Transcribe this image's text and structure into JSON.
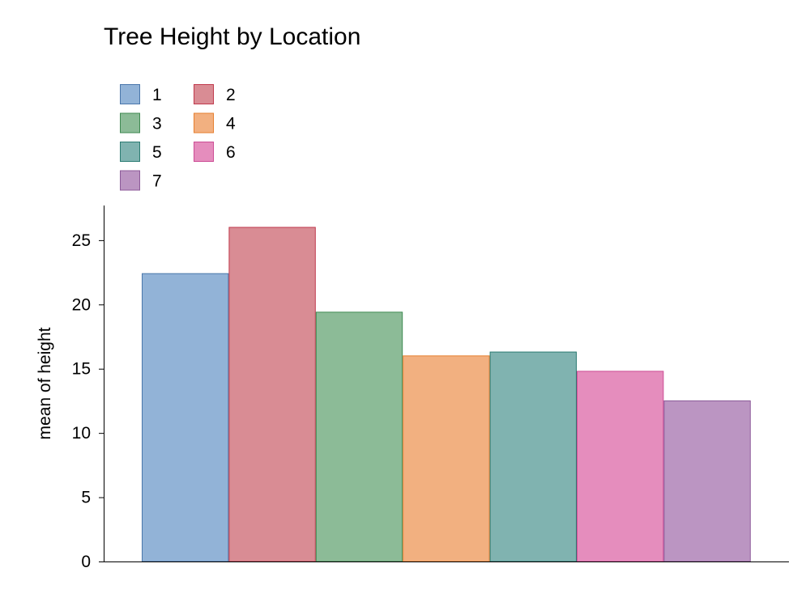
{
  "chart_data": {
    "type": "bar",
    "title": "Tree Height by Location",
    "xlabel": "",
    "ylabel": "mean of height",
    "ylim": [
      0,
      27.7
    ],
    "yticks": [
      0,
      5,
      10,
      15,
      20,
      25
    ],
    "grid": false,
    "legend_position": "top-left",
    "series": [
      {
        "name": "1",
        "value": 22.4,
        "fill": "#92b3d7",
        "stroke": "#4a77ab"
      },
      {
        "name": "2",
        "value": 26.0,
        "fill": "#d98c94",
        "stroke": "#c0394c"
      },
      {
        "name": "3",
        "value": 19.4,
        "fill": "#8cbb97",
        "stroke": "#3f8a52"
      },
      {
        "name": "4",
        "value": 16.0,
        "fill": "#f2b080",
        "stroke": "#e67f2f"
      },
      {
        "name": "5",
        "value": 16.3,
        "fill": "#80b3b0",
        "stroke": "#2c7c73"
      },
      {
        "name": "6",
        "value": 14.8,
        "fill": "#e58dbd",
        "stroke": "#cc4c95"
      },
      {
        "name": "7",
        "value": 12.5,
        "fill": "#bb95c2",
        "stroke": "#8c5a99"
      }
    ]
  }
}
